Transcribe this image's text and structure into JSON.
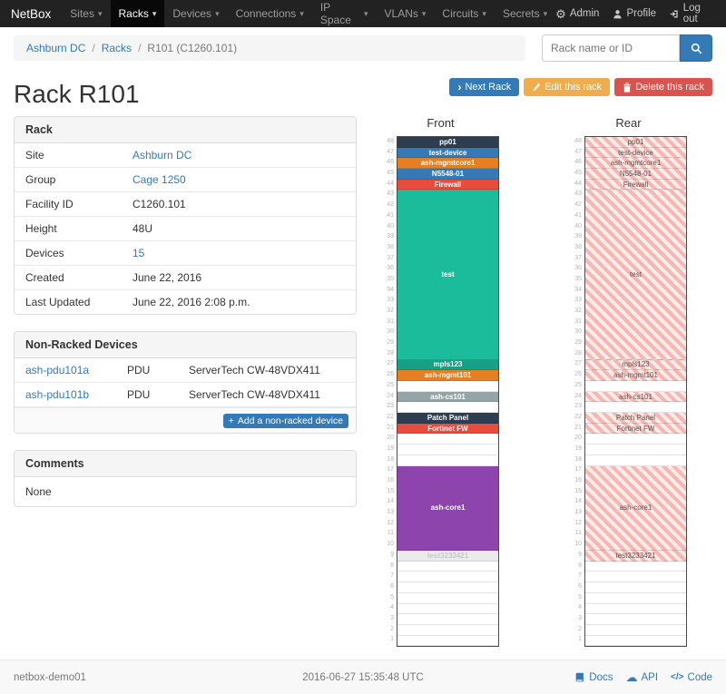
{
  "navbar": {
    "brand": "NetBox",
    "items": [
      "Sites",
      "Racks",
      "Devices",
      "Connections",
      "IP Space",
      "VLANs",
      "Circuits",
      "Secrets"
    ],
    "active_item": "Racks",
    "admin": "Admin",
    "profile": "Profile",
    "logout": "Log out"
  },
  "breadcrumb": {
    "items": [
      "Ashburn DC",
      "Racks",
      "R101 (C1260.101)"
    ]
  },
  "search": {
    "placeholder": "Rack name or ID"
  },
  "actions": {
    "next": "Next Rack",
    "edit": "Edit this rack",
    "delete": "Delete this rack"
  },
  "title": "Rack R101",
  "colors": {
    "primary": "#337ab7",
    "warning": "#f0ad4e",
    "danger": "#d9534f"
  },
  "rack_panel": {
    "title": "Rack",
    "rows": [
      {
        "label": "Site",
        "value": "Ashburn DC"
      },
      {
        "label": "Group",
        "value": "Cage 1250"
      },
      {
        "label": "Facility ID",
        "value": "C1260.101"
      },
      {
        "label": "Height",
        "value": "48U"
      },
      {
        "label": "Devices",
        "value": "15"
      },
      {
        "label": "Created",
        "value": "June 22, 2016"
      },
      {
        "label": "Last Updated",
        "value": "June 22, 2016 2:08 p.m."
      }
    ]
  },
  "nonracked": {
    "title": "Non-Racked Devices",
    "rows": [
      {
        "name": "ash-pdu101a",
        "role": "PDU",
        "type": "ServerTech CW-48VDX411"
      },
      {
        "name": "ash-pdu101b",
        "role": "PDU",
        "type": "ServerTech CW-48VDX411"
      }
    ],
    "add_label": "Add a non-racked device"
  },
  "comments": {
    "title": "Comments",
    "body": "None"
  },
  "elevation": {
    "front_title": "Front",
    "rear_title": "Rear",
    "total_units": 48,
    "rear_stripes": [
      "#fdecea",
      "#f5b7b1"
    ],
    "units": [
      {
        "u": 48,
        "h": 1,
        "label": "pp01",
        "color": "#2c3e50"
      },
      {
        "u": 47,
        "h": 1,
        "label": "test-device",
        "color": "#337ab7"
      },
      {
        "u": 46,
        "h": 1,
        "label": "ash-mgmtcore1",
        "color": "#e67e22"
      },
      {
        "u": 45,
        "h": 1,
        "label": "N5548-01",
        "color": "#337ab7"
      },
      {
        "u": 44,
        "h": 1,
        "label": "Firewall",
        "color": "#e74c3c"
      },
      {
        "u": 43,
        "h": 16,
        "label": "test",
        "color": "#1abc9c"
      },
      {
        "u": 27,
        "h": 1,
        "label": "mpls123",
        "color": "#16a085"
      },
      {
        "u": 26,
        "h": 1,
        "label": "ash-mgmt101",
        "color": "#e67e22"
      },
      {
        "u": 24,
        "h": 1,
        "label": "ash-cs101",
        "color": "#95a5a6"
      },
      {
        "u": 22,
        "h": 1,
        "label": "Patch Panel",
        "color": "#2c3e50"
      },
      {
        "u": 21,
        "h": 1,
        "label": "Fortinet FW",
        "color": "#e74c3c"
      },
      {
        "u": 17,
        "h": 8,
        "label": "ash-core1",
        "color": "#8e44ad"
      },
      {
        "u": 9,
        "h": 1,
        "label": "test3233421",
        "color": "#ebebeb",
        "text": "#c3c9cd"
      }
    ]
  },
  "footer": {
    "hostname": "netbox-demo01",
    "timestamp": "2016-06-27 15:35:48 UTC",
    "links": [
      "Docs",
      "API",
      "Code"
    ]
  }
}
